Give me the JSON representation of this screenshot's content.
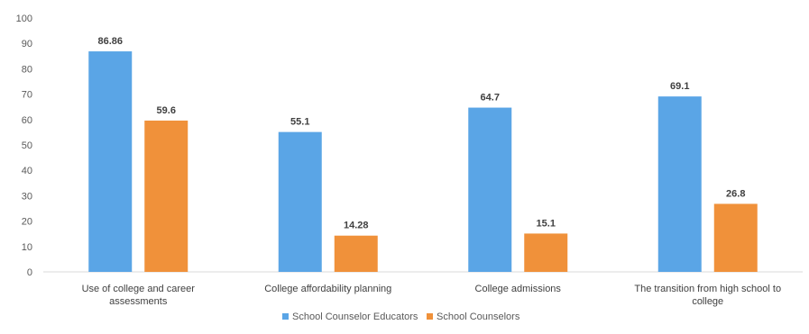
{
  "chart_data": {
    "type": "bar",
    "title": "",
    "xlabel": "",
    "ylabel": "",
    "ylim": [
      0,
      100
    ],
    "yticks": [
      0,
      10,
      20,
      30,
      40,
      50,
      60,
      70,
      80,
      90,
      100
    ],
    "grid": false,
    "legend_position": "bottom",
    "categories": [
      "Use of college and career assessments",
      "College affordability planning",
      "College admissions",
      "The transition from high school to college"
    ],
    "series": [
      {
        "name": "School Counselor Educators",
        "color": "#5aa5e6",
        "values": [
          86.86,
          55.1,
          64.7,
          69.1
        ],
        "labels": [
          "86.86",
          "55.1",
          "64.7",
          "69.1"
        ]
      },
      {
        "name": "School Counselors",
        "color": "#f0913a",
        "values": [
          59.6,
          14.28,
          15.1,
          26.8
        ],
        "labels": [
          "59.6",
          "14.28",
          "15.1",
          "26.8"
        ]
      }
    ]
  }
}
